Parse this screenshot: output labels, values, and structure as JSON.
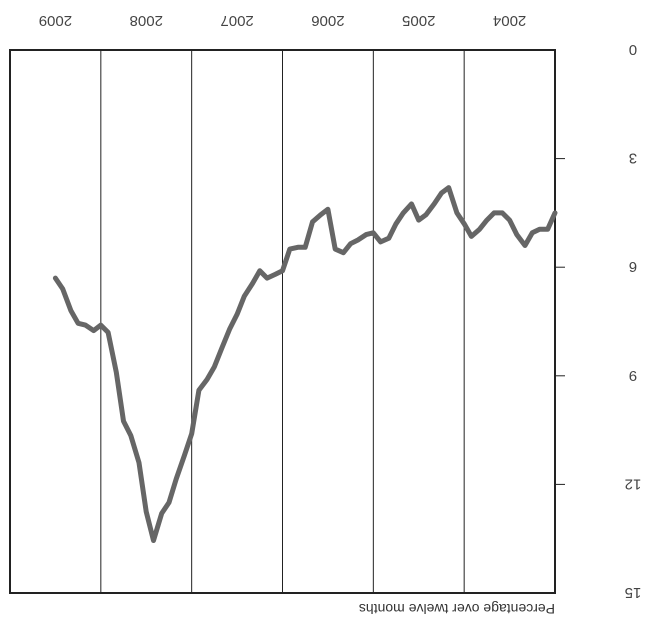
{
  "chart_data": {
    "type": "line",
    "title": "",
    "xlabel": "",
    "ylabel": "Percentage over twelve months",
    "ylim": [
      0,
      15
    ],
    "yticks": [
      "0",
      "3",
      "6",
      "9",
      "12",
      "15"
    ],
    "xlim": [
      2004.0,
      2010.0
    ],
    "year_labels": [
      "2004",
      "2005",
      "2006",
      "2007",
      "2008",
      "2009"
    ],
    "grid": "vertical year lines",
    "line_color": "#666666",
    "series": [
      {
        "x": [
          2004.0,
          2004.08,
          2004.17,
          2004.25,
          2004.33,
          2004.42,
          2004.5,
          2004.58,
          2004.67,
          2004.75,
          2004.83,
          2004.92,
          2005.0,
          2005.08,
          2005.17,
          2005.25,
          2005.33,
          2005.42,
          2005.5,
          2005.58,
          2005.67,
          2005.75,
          2005.83,
          2005.92,
          2006.0,
          2006.08,
          2006.17,
          2006.25,
          2006.33,
          2006.42,
          2006.5,
          2006.58,
          2006.67,
          2006.75,
          2006.83,
          2006.92,
          2007.0,
          2007.08,
          2007.17,
          2007.25,
          2007.33,
          2007.42,
          2007.5,
          2007.58,
          2007.67,
          2007.75,
          2007.83,
          2007.92,
          2008.0,
          2008.08,
          2008.17,
          2008.25,
          2008.33,
          2008.42,
          2008.5,
          2008.58,
          2008.67,
          2008.75,
          2008.83,
          2008.92,
          2009.0,
          2009.08,
          2009.17,
          2009.25,
          2009.33,
          2009.42,
          2009.5
        ],
        "values": [
          4.5,
          4.95,
          4.95,
          5.05,
          5.4,
          5.1,
          4.7,
          4.5,
          4.5,
          4.7,
          4.95,
          5.15,
          4.8,
          4.5,
          3.8,
          3.95,
          4.25,
          4.55,
          4.7,
          4.25,
          4.5,
          4.8,
          5.2,
          5.3,
          5.05,
          5.1,
          5.25,
          5.35,
          5.6,
          5.5,
          4.4,
          4.55,
          4.75,
          5.45,
          5.45,
          5.5,
          6.1,
          6.2,
          6.3,
          6.1,
          6.45,
          6.8,
          7.3,
          7.7,
          8.25,
          8.75,
          9.1,
          9.4,
          10.6,
          11.2,
          11.85,
          12.5,
          12.8,
          13.55,
          12.75,
          11.4,
          10.65,
          10.25,
          8.9,
          7.8,
          7.6,
          7.75,
          7.6,
          7.55,
          7.2,
          6.6,
          6.3
        ]
      }
    ]
  }
}
